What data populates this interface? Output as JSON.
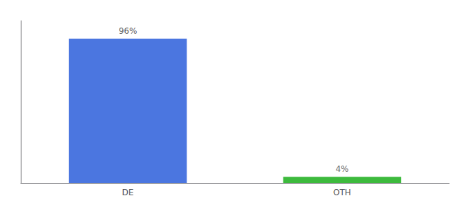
{
  "chart_data": {
    "type": "bar",
    "categories": [
      "DE",
      "OTH"
    ],
    "values": [
      96,
      4
    ],
    "value_labels": [
      "96%",
      "4%"
    ],
    "colors": [
      "#4b76e0",
      "#3dba3d"
    ],
    "ylim": [
      0,
      108
    ],
    "data_labels": true,
    "tick_labels": "x",
    "grid": false
  }
}
